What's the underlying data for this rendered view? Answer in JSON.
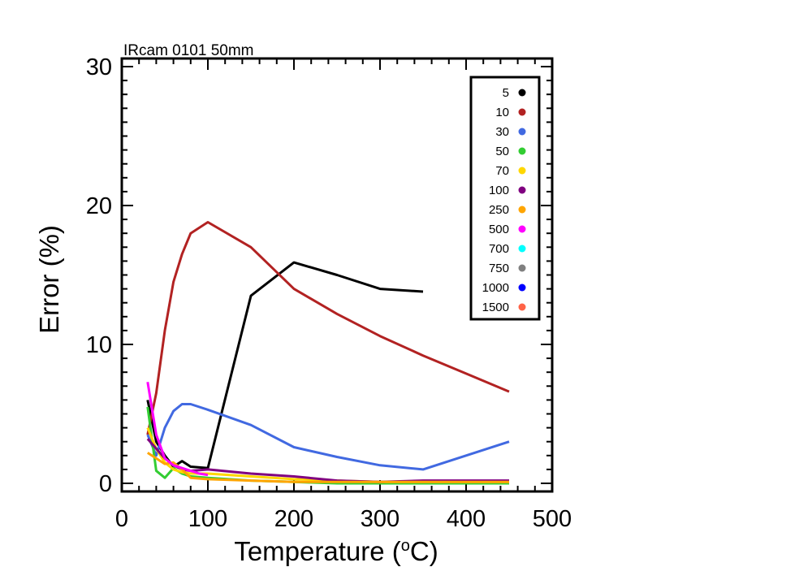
{
  "chart_data": {
    "type": "line",
    "title": "IRcam 0101 50mm",
    "xlabel": "Temperature (",
    "xlabel_sup": "o",
    "xlabel_end": "C)",
    "ylabel": "Error (%)",
    "xlim": [
      0,
      500
    ],
    "ylim": [
      0,
      30
    ],
    "xticks": [
      0,
      100,
      200,
      300,
      400,
      500
    ],
    "yticks": [
      0,
      10,
      20,
      30
    ],
    "legend_position": "top-right",
    "series": [
      {
        "name": "5",
        "color": "#000000",
        "x": [
          30,
          40,
          50,
          60,
          70,
          80,
          100,
          150,
          200,
          250,
          300,
          350
        ],
        "y": [
          6.0,
          3.0,
          2.0,
          1.2,
          1.6,
          1.2,
          1.1,
          13.5,
          15.9,
          15.0,
          14.0,
          13.8
        ]
      },
      {
        "name": "10",
        "color": "#b22222",
        "x": [
          30,
          40,
          50,
          60,
          70,
          80,
          100,
          150,
          200,
          250,
          300,
          350,
          400,
          450
        ],
        "y": [
          3.5,
          6.5,
          11.0,
          14.5,
          16.5,
          18.0,
          18.8,
          17.0,
          14.0,
          12.2,
          10.6,
          9.2,
          7.9,
          6.6
        ]
      },
      {
        "name": "30",
        "color": "#4169e1",
        "x": [
          30,
          40,
          50,
          60,
          70,
          80,
          100,
          150,
          200,
          250,
          300,
          350,
          400,
          450
        ],
        "y": [
          3.5,
          2.0,
          4.0,
          5.2,
          5.7,
          5.7,
          5.3,
          4.2,
          2.6,
          1.9,
          1.3,
          1.0,
          2.0,
          3.0
        ]
      },
      {
        "name": "50",
        "color": "#32cd32",
        "x": [
          30,
          40,
          50,
          60,
          70,
          80,
          100,
          150,
          200,
          250,
          300,
          350,
          400,
          450
        ],
        "y": [
          5.5,
          0.9,
          0.4,
          1.1,
          0.7,
          0.5,
          0.4,
          0.2,
          0.1,
          0.0,
          0.0,
          0.0,
          0.0,
          0.0
        ]
      },
      {
        "name": "70",
        "color": "#ffd700",
        "x": [
          30,
          40,
          50,
          60,
          70,
          80,
          100,
          150,
          200,
          250,
          300,
          350,
          400,
          450
        ],
        "y": [
          4.0,
          2.5,
          1.5,
          1.0,
          0.8,
          0.7,
          0.7,
          0.5,
          0.3,
          0.2,
          0.1,
          0.1,
          0.1,
          0.1
        ]
      },
      {
        "name": "100",
        "color": "#800080",
        "x": [
          30,
          40,
          50,
          60,
          70,
          80,
          100,
          150,
          200,
          250,
          300,
          350,
          400,
          450
        ],
        "y": [
          3.2,
          2.5,
          1.8,
          1.3,
          1.0,
          0.9,
          1.0,
          0.7,
          0.5,
          0.2,
          0.1,
          0.2,
          0.2,
          0.2
        ]
      },
      {
        "name": "250",
        "color": "#ffa500",
        "x": [
          30,
          40,
          50,
          60,
          70,
          80,
          100,
          150,
          200,
          250,
          300,
          350,
          400,
          450
        ],
        "y": [
          2.2,
          1.8,
          1.4,
          1.5,
          1.0,
          0.4,
          0.3,
          0.2,
          0.1,
          0.1,
          0.1,
          0.1,
          0.1,
          0.1
        ]
      },
      {
        "name": "500",
        "color": "#ff00ff",
        "x": [
          30,
          40,
          50,
          60,
          70,
          80,
          90,
          100
        ],
        "y": [
          7.3,
          3.5,
          1.8,
          1.3,
          1.1,
          0.9,
          0.7,
          0.6
        ]
      },
      {
        "name": "700",
        "color": "#00ffff",
        "x": [],
        "y": []
      },
      {
        "name": "750",
        "color": "#808080",
        "x": [],
        "y": []
      },
      {
        "name": "1000",
        "color": "#0000ff",
        "x": [],
        "y": []
      },
      {
        "name": "1500",
        "color": "#ff6347",
        "x": [],
        "y": []
      }
    ]
  }
}
